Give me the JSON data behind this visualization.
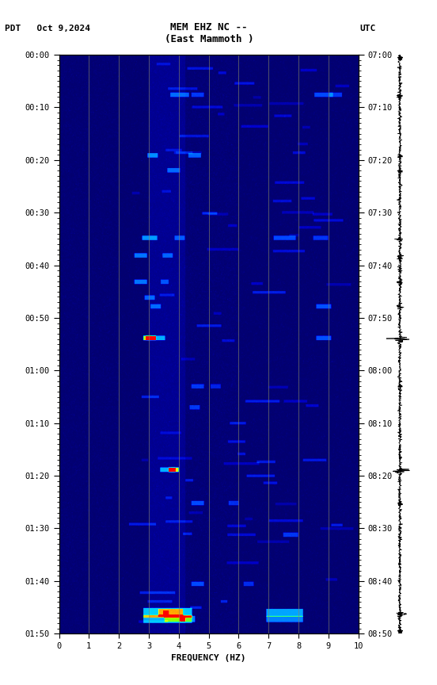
{
  "title_line1": "MEM EHZ NC --",
  "title_line2": "(East Mammoth )",
  "left_label": "PDT   Oct 9,2024",
  "right_label": "UTC",
  "xlabel": "FREQUENCY (HZ)",
  "freq_min": 0,
  "freq_max": 10,
  "freq_ticks": [
    0,
    1,
    2,
    3,
    4,
    5,
    6,
    7,
    8,
    9,
    10
  ],
  "left_time_labels": [
    "00:00",
    "00:10",
    "00:20",
    "00:30",
    "00:40",
    "00:50",
    "01:00",
    "01:10",
    "01:20",
    "01:30",
    "01:40",
    "01:50"
  ],
  "right_time_labels": [
    "07:00",
    "07:10",
    "07:20",
    "07:30",
    "07:40",
    "07:50",
    "08:00",
    "08:10",
    "08:20",
    "08:30",
    "08:40",
    "08:50"
  ],
  "grid_freq_lines": [
    1,
    2,
    3,
    4,
    5,
    6,
    7,
    8,
    9
  ],
  "bg_color": "#ffffff",
  "n_time": 660,
  "n_freq": 500,
  "seed": 7
}
